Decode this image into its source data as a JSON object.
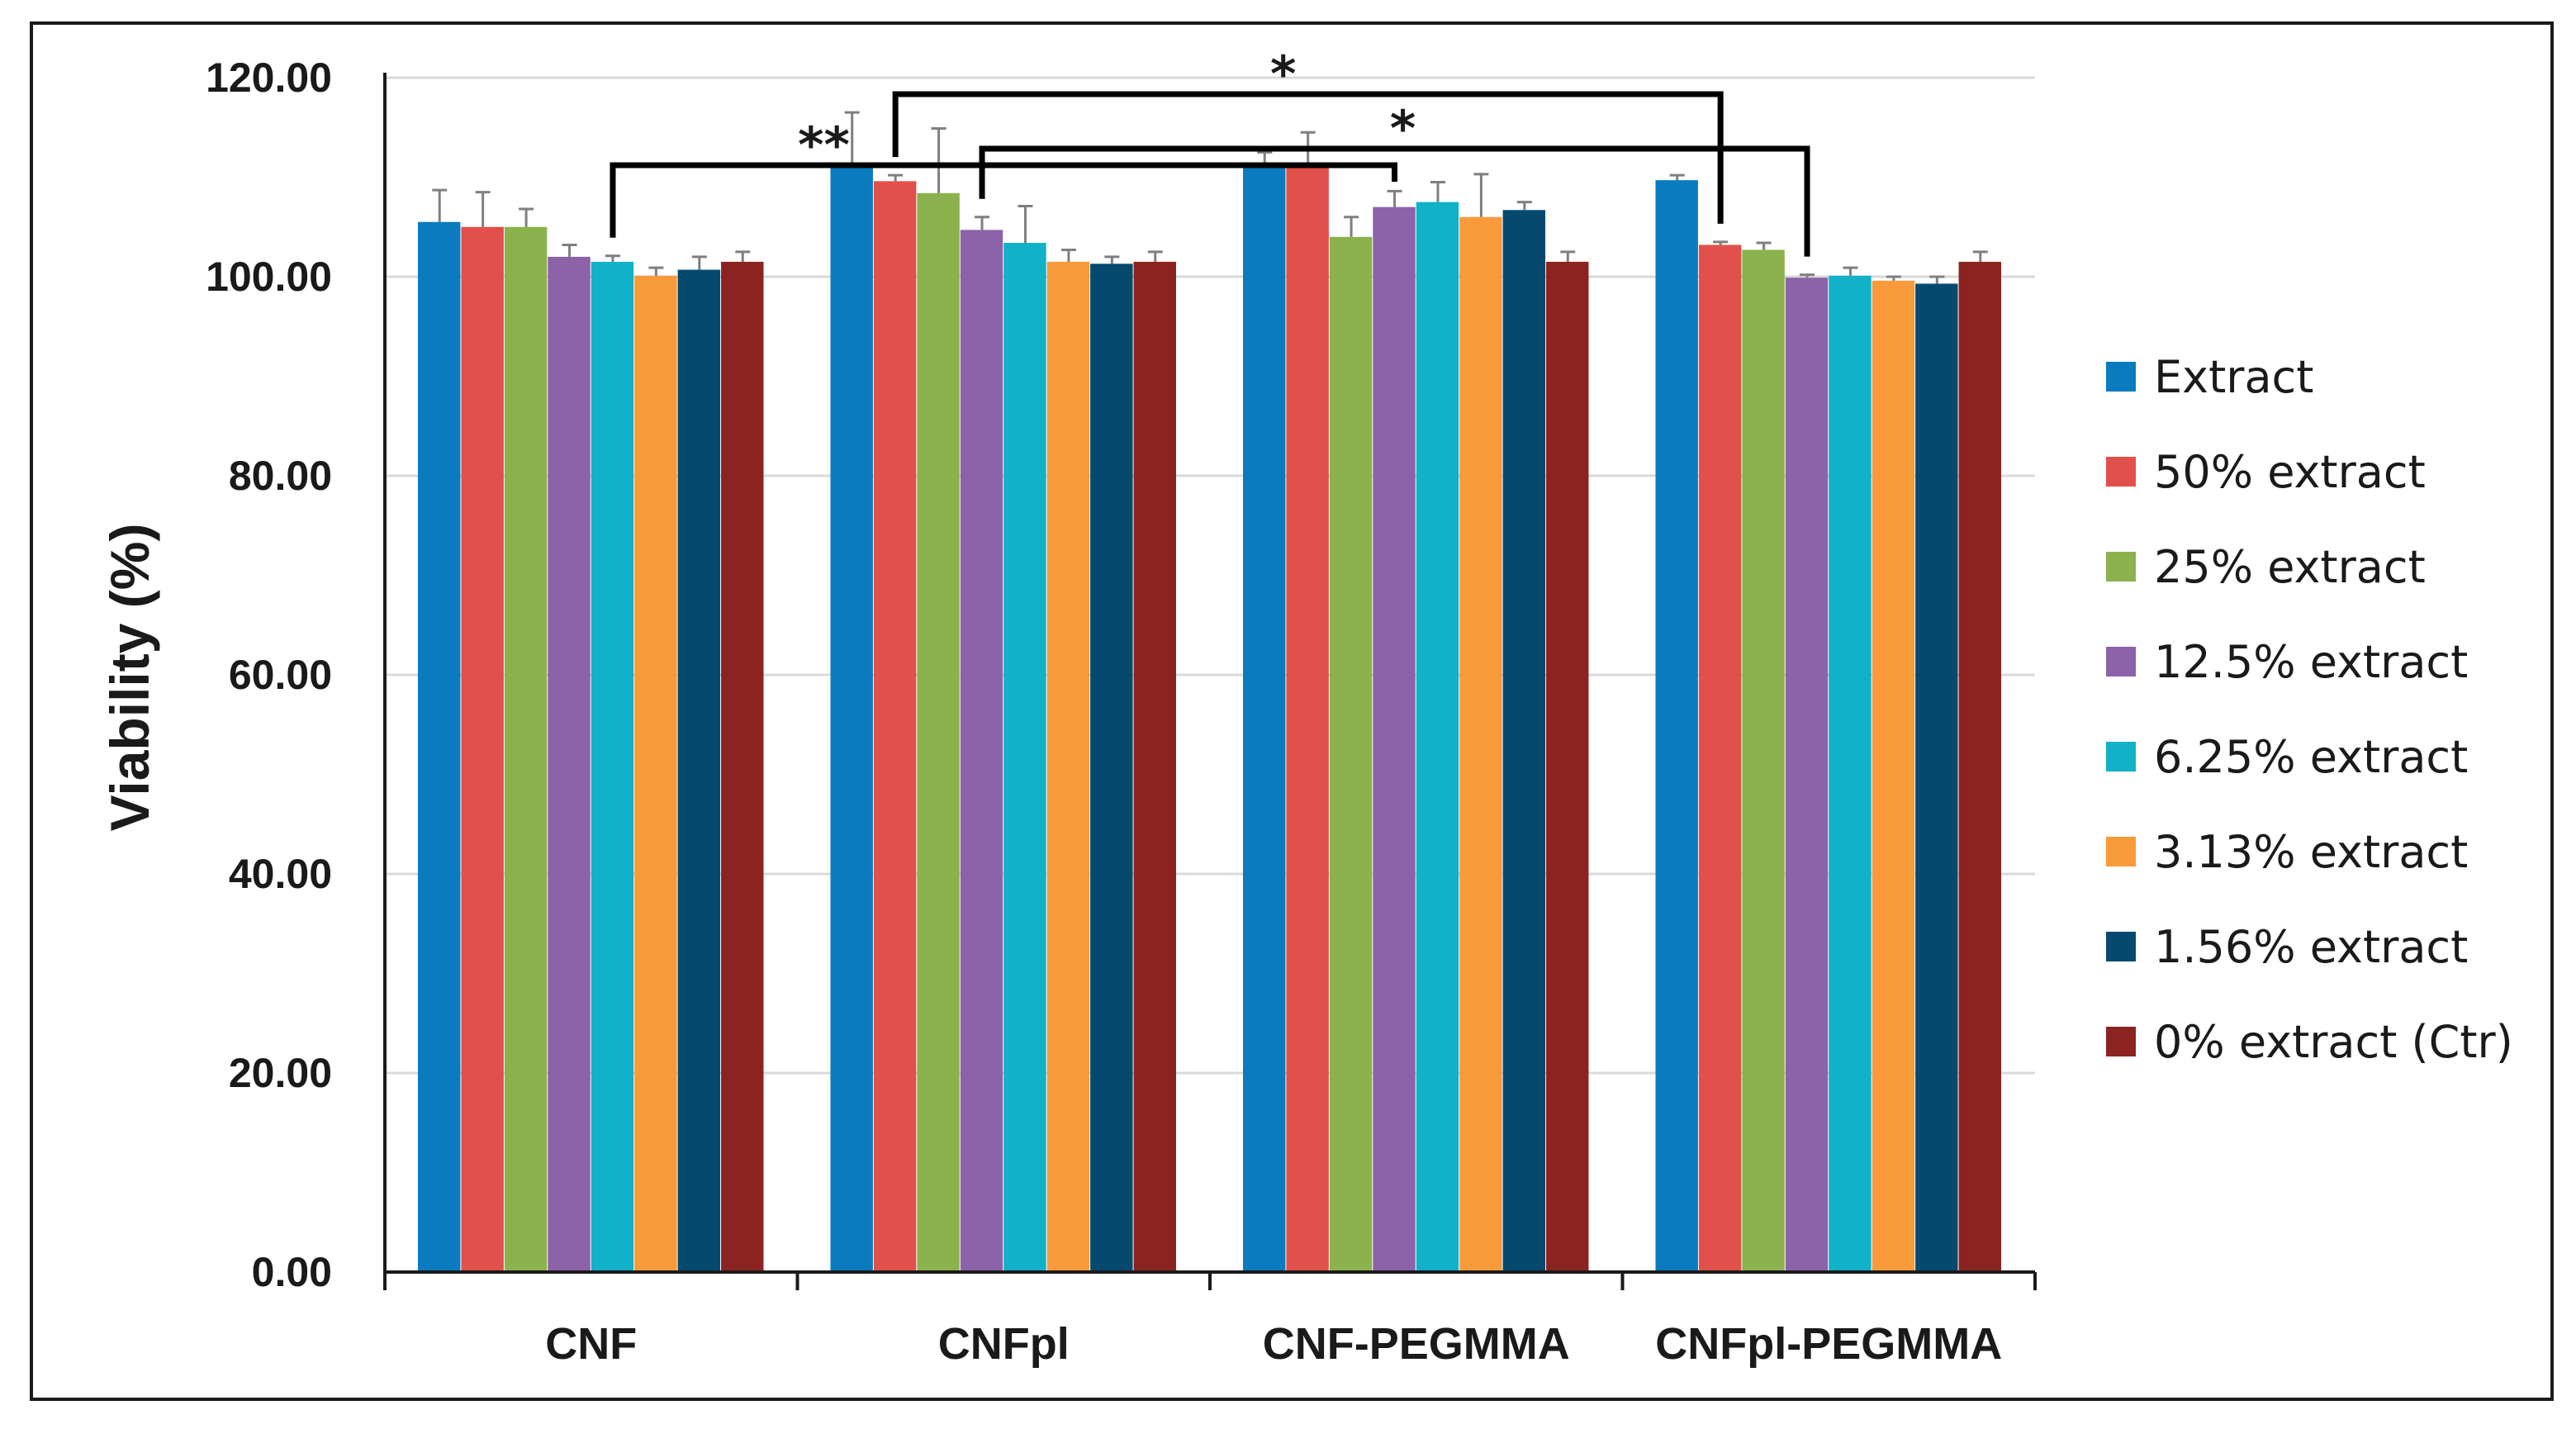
{
  "chart_data": {
    "type": "bar",
    "title": "",
    "xlabel": "",
    "ylabel": "Viability (%)",
    "ylim": [
      0,
      120
    ],
    "yticks": [
      "0.00",
      "20.00",
      "40.00",
      "60.00",
      "80.00",
      "100.00",
      "120.00"
    ],
    "grid": true,
    "legend_position": "right",
    "categories": [
      "CNF",
      "CNFpl",
      "CNF-PEGMMA",
      "CNFpl-PEGMMA"
    ],
    "series": [
      {
        "name": "Extract",
        "color": "#0a7bbf",
        "values": [
          105.5,
          111.0,
          111.0,
          109.7
        ],
        "errors": [
          3.2,
          5.5,
          1.5,
          0.5
        ]
      },
      {
        "name": "50% extract",
        "color": "#e1504a",
        "values": [
          105.0,
          109.6,
          111.0,
          103.2
        ],
        "errors": [
          3.5,
          0.6,
          3.5,
          0.3
        ]
      },
      {
        "name": "25% extract",
        "color": "#8bb24c",
        "values": [
          105.0,
          108.4,
          104.0,
          102.7
        ],
        "errors": [
          1.8,
          6.5,
          2.0,
          0.7
        ]
      },
      {
        "name": "12.5% extract",
        "color": "#8c62a8",
        "values": [
          102.0,
          104.7,
          107.0,
          99.9
        ],
        "errors": [
          1.2,
          1.3,
          1.6,
          0.3
        ]
      },
      {
        "name": "6.25% extract",
        "color": "#10b1c9",
        "values": [
          101.5,
          103.4,
          107.5,
          100.1
        ],
        "errors": [
          0.6,
          3.7,
          2.0,
          0.8
        ]
      },
      {
        "name": "3.13% extract",
        "color": "#f99a3a",
        "values": [
          100.1,
          101.5,
          106.0,
          99.6
        ],
        "errors": [
          0.8,
          1.2,
          4.3,
          0.4
        ]
      },
      {
        "name": "1.56% extract",
        "color": "#05496f",
        "values": [
          100.7,
          101.3,
          106.7,
          99.3
        ],
        "errors": [
          1.3,
          0.7,
          0.8,
          0.7
        ]
      },
      {
        "name": "0% extract (Ctr)",
        "color": "#8b2320",
        "values": [
          101.5,
          101.5,
          101.5,
          101.5
        ],
        "errors": [
          1.0,
          1.0,
          1.0,
          1.0
        ]
      }
    ],
    "annotations": [
      {
        "label": "**",
        "from_category": "CNF",
        "from_series": "6.25% extract",
        "to_category": "CNF-PEGMMA",
        "to_series": "12.5% extract"
      },
      {
        "label": "*",
        "from_category": "CNFpl",
        "from_series": "50% extract",
        "to_category": "CNFpl-PEGMMA",
        "to_series": "50% extract"
      },
      {
        "label": "*",
        "from_category": "CNFpl",
        "from_series": "12.5% extract",
        "to_category": "CNFpl-PEGMMA",
        "to_series": "12.5% extract"
      }
    ]
  }
}
